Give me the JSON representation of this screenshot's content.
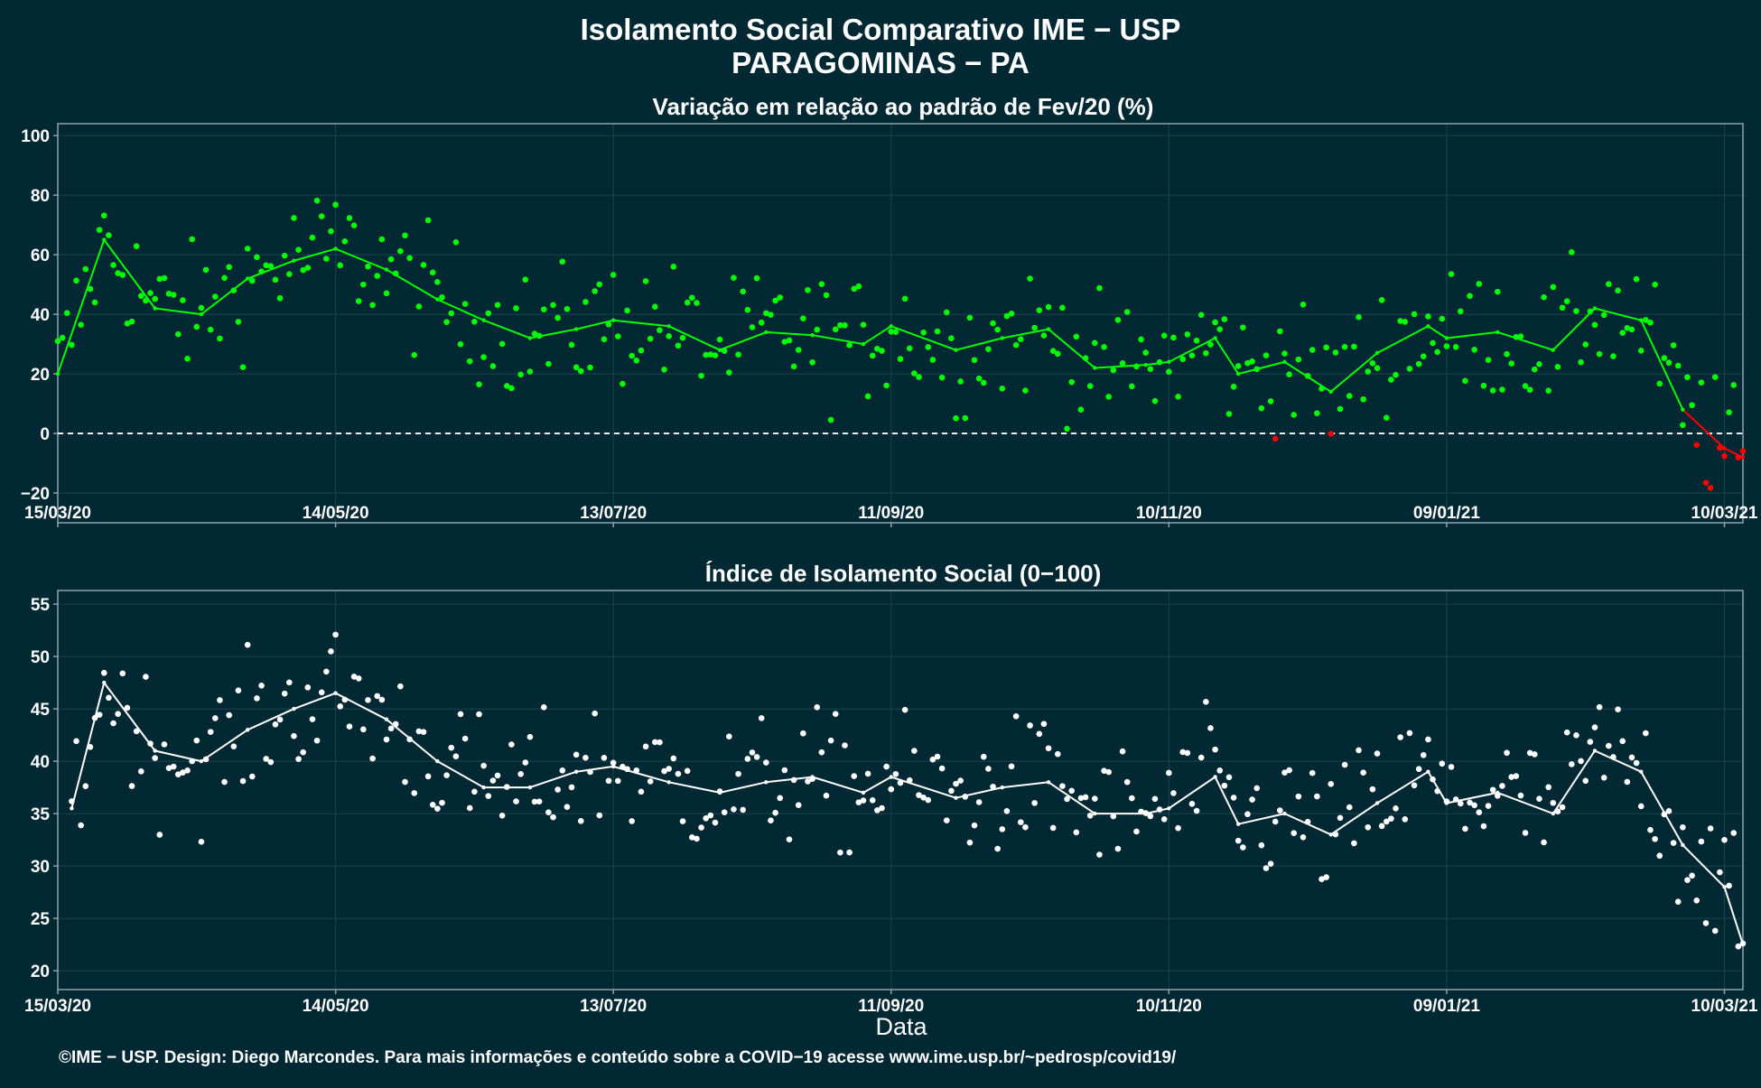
{
  "header": {
    "title_line1": "Isolamento Social Comparativo IME − USP",
    "title_line2": "PARAGOMINAS − PA"
  },
  "footer": {
    "xlabel": "Data",
    "credit": "©IME − USP. Design: Diego Marcondes. Para mais informações e conteúdo sobre a COVID−19 acesse www.ime.usp.br/~pedrosp/covid19/"
  },
  "colors": {
    "background": "#022833",
    "grid": "#1d4450",
    "axis": "#8fa3aa",
    "positive": "#00ff00",
    "negative": "#ff0000",
    "index": "#ffffff"
  },
  "chart_data": [
    {
      "type": "scatter",
      "title": "Variação em relação ao padrão de Fev/20 (%)",
      "xlabel": "",
      "ylabel": "",
      "x_range": [
        "2020-03-15",
        "2021-03-14"
      ],
      "x_ticks": [
        "15/03/20",
        "14/05/20",
        "13/07/20",
        "11/09/20",
        "10/11/20",
        "09/01/21",
        "10/03/21"
      ],
      "y_ticks": [
        100,
        80,
        60,
        40,
        20,
        0,
        -20
      ],
      "ylim": [
        -30,
        104
      ],
      "reference_line": 0,
      "grid": true,
      "series": [
        {
          "x": [
            "2020-03-15",
            "2020-03-25",
            "2020-04-05",
            "2020-04-15",
            "2020-04-25",
            "2020-05-05",
            "2020-05-14",
            "2020-05-25",
            "2020-06-05",
            "2020-06-15",
            "2020-06-25",
            "2020-07-05",
            "2020-07-13",
            "2020-07-25",
            "2020-08-05",
            "2020-08-15",
            "2020-08-25",
            "2020-09-05",
            "2020-09-11",
            "2020-09-25",
            "2020-10-05",
            "2020-10-15",
            "2020-10-25",
            "2020-11-05",
            "2020-11-10",
            "2020-11-20",
            "2020-11-25",
            "2020-12-05",
            "2020-12-15",
            "2020-12-25",
            "2021-01-05",
            "2021-01-09",
            "2021-01-20",
            "2021-02-01",
            "2021-02-10",
            "2021-02-20",
            "2021-03-01",
            "2021-03-10",
            "2021-03-14"
          ],
          "values": [
            20,
            65,
            42,
            40,
            52,
            58,
            62,
            55,
            45,
            38,
            32,
            35,
            38,
            36,
            28,
            34,
            33,
            30,
            36,
            28,
            32,
            35,
            22,
            23,
            24,
            32,
            20,
            24,
            14,
            27,
            36,
            32,
            34,
            28,
            42,
            38,
            8,
            -5,
            -8
          ]
        }
      ]
    },
    {
      "type": "scatter",
      "title": "Índice de Isolamento Social (0−100)",
      "xlabel": "Data",
      "ylabel": "",
      "x_range": [
        "2020-03-15",
        "2021-03-14"
      ],
      "x_ticks": [
        "15/03/20",
        "14/05/20",
        "13/07/20",
        "11/09/20",
        "10/11/20",
        "09/01/21",
        "10/03/21"
      ],
      "y_ticks": [
        55,
        50,
        45,
        40,
        35,
        30,
        25,
        20
      ],
      "ylim": [
        18.2,
        56.3
      ],
      "grid": true,
      "series": [
        {
          "x": [
            "2020-03-18",
            "2020-03-25",
            "2020-04-05",
            "2020-04-15",
            "2020-04-25",
            "2020-05-05",
            "2020-05-14",
            "2020-05-25",
            "2020-06-05",
            "2020-06-15",
            "2020-06-25",
            "2020-07-05",
            "2020-07-13",
            "2020-07-25",
            "2020-08-05",
            "2020-08-15",
            "2020-08-25",
            "2020-09-05",
            "2020-09-11",
            "2020-09-25",
            "2020-10-05",
            "2020-10-15",
            "2020-10-25",
            "2020-11-05",
            "2020-11-10",
            "2020-11-20",
            "2020-11-25",
            "2020-12-05",
            "2020-12-15",
            "2020-12-25",
            "2021-01-05",
            "2021-01-09",
            "2021-01-20",
            "2021-02-01",
            "2021-02-10",
            "2021-02-20",
            "2021-03-01",
            "2021-03-10",
            "2021-03-14"
          ],
          "values": [
            35.5,
            47.5,
            41,
            40,
            43,
            45,
            46.5,
            44,
            40,
            37.5,
            37.5,
            39,
            39.5,
            38,
            37,
            38,
            38.5,
            37,
            38.5,
            36.5,
            37.5,
            38,
            35,
            35,
            35.5,
            38.5,
            34,
            35,
            33,
            36,
            39,
            36,
            37,
            35,
            41,
            39,
            32,
            28,
            22.5
          ]
        }
      ]
    }
  ]
}
